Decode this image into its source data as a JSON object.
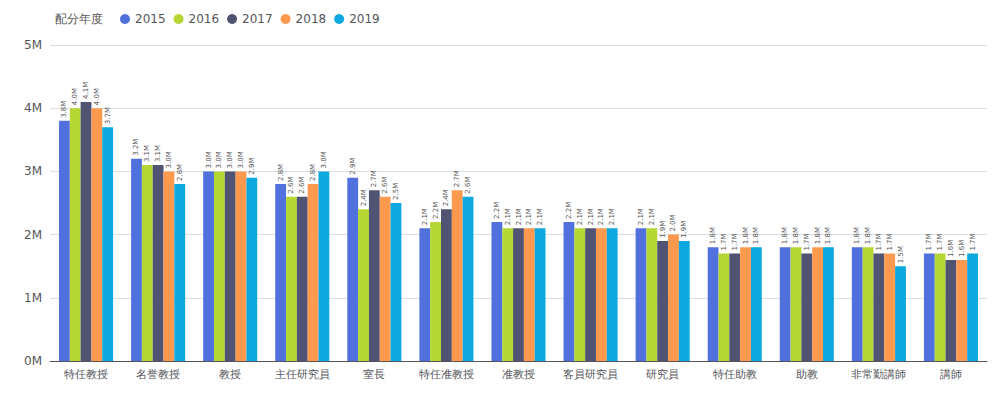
{
  "chart_data": {
    "type": "bar",
    "legend_title": "配分年度",
    "categories": [
      "特任教授",
      "名誉教授",
      "教授",
      "主任研究員",
      "室長",
      "特任准教授",
      "准教授",
      "客員研究員",
      "研究員",
      "特任助教",
      "助教",
      "非常勤講師",
      "講師"
    ],
    "series": [
      {
        "name": "2015",
        "values": [
          3.8,
          3.2,
          3.0,
          2.8,
          2.9,
          2.1,
          2.2,
          2.2,
          2.1,
          1.8,
          1.8,
          1.8,
          1.7
        ],
        "value_labels": [
          "3.8M",
          "3.2M",
          "3.0M",
          "2.8M",
          "2.9M",
          "2.1M",
          "2.2M",
          "2.2M",
          "2.1M",
          "1.8M",
          "1.8M",
          "1.8M",
          "1.7M"
        ]
      },
      {
        "name": "2016",
        "values": [
          4.0,
          3.1,
          3.0,
          2.6,
          2.4,
          2.2,
          2.1,
          2.1,
          2.1,
          1.7,
          1.8,
          1.8,
          1.7
        ],
        "value_labels": [
          "4.0M",
          "3.1M",
          "3.0M",
          "2.6M",
          "2.4M",
          "2.2M",
          "2.1M",
          "2.1M",
          "2.1M",
          "1.7M",
          "1.8M",
          "1.8M",
          "1.7M"
        ]
      },
      {
        "name": "2017",
        "values": [
          4.1,
          3.1,
          3.0,
          2.6,
          2.7,
          2.4,
          2.1,
          2.1,
          1.9,
          1.7,
          1.7,
          1.7,
          1.6
        ],
        "value_labels": [
          "4.1M",
          "3.1M",
          "3.0M",
          "2.6M",
          "2.7M",
          "2.4M",
          "2.1M",
          "2.1M",
          "1.9M",
          "1.7M",
          "1.7M",
          "1.7M",
          "1.6M"
        ]
      },
      {
        "name": "2018",
        "values": [
          4.0,
          3.0,
          3.0,
          2.8,
          2.6,
          2.7,
          2.1,
          2.1,
          2.0,
          1.8,
          1.8,
          1.7,
          1.6
        ],
        "value_labels": [
          "4.0M",
          "3.0M",
          "3.0M",
          "2.8M",
          "2.6M",
          "2.7M",
          "2.1M",
          "2.1M",
          "2.0M",
          "1.8M",
          "1.8M",
          "1.7M",
          "1.6M"
        ]
      },
      {
        "name": "2019",
        "values": [
          3.7,
          2.8,
          2.9,
          3.0,
          2.5,
          2.6,
          2.1,
          2.1,
          1.9,
          1.8,
          1.8,
          1.5,
          1.7
        ],
        "value_labels": [
          "3.7M",
          "2.8M",
          "2.9M",
          "3.0M",
          "2.5M",
          "2.6M",
          "2.1M",
          "2.1M",
          "1.9M",
          "1.8M",
          "1.8M",
          "1.5M",
          "1.7M"
        ]
      }
    ],
    "ylim": [
      0,
      5
    ],
    "yticks": [
      {
        "value": 0,
        "label": "0M"
      },
      {
        "value": 1,
        "label": "1M"
      },
      {
        "value": 2,
        "label": "2M"
      },
      {
        "value": 3,
        "label": "3M"
      },
      {
        "value": 4,
        "label": "4M"
      },
      {
        "value": 5,
        "label": "5M"
      }
    ],
    "grid": true,
    "legend": "top-left",
    "data_labels": true
  }
}
